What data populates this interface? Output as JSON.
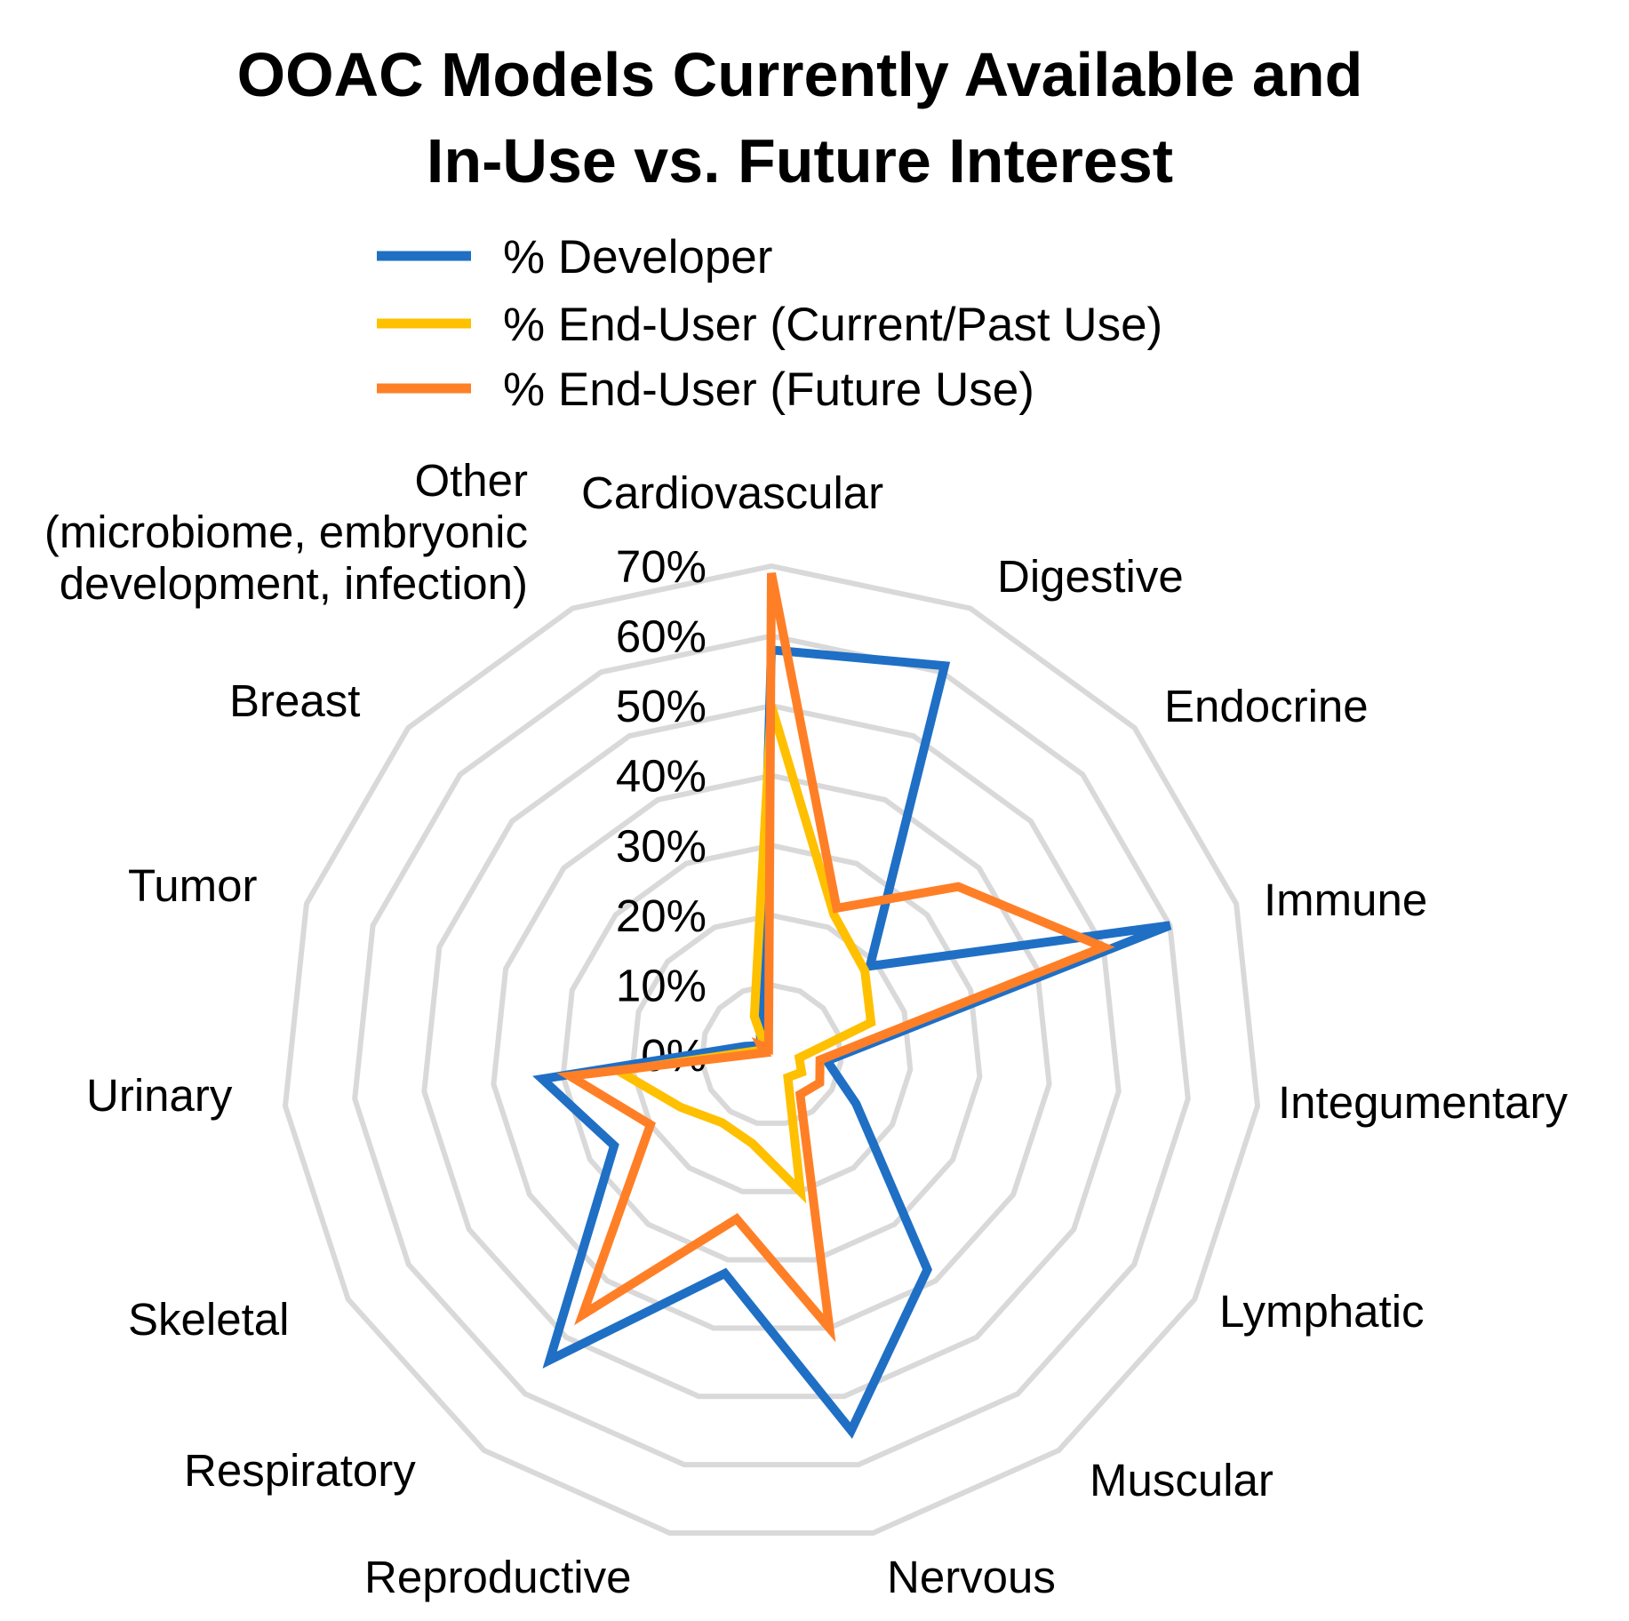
{
  "chart_data": {
    "type": "radar",
    "title_lines": [
      "OOAC Models Currently Available and",
      "In-Use vs. Future Interest"
    ],
    "categories": [
      "Cardiovascular",
      "Digestive",
      "Endocrine",
      "Immune",
      "Integumentary",
      "Lymphatic",
      "Muscular",
      "Nervous",
      "Reproductive",
      "Respiratory",
      "Skeletal",
      "Urinary",
      "Tumor",
      "Breast",
      "Other (microbiome, embryonic development, infection)"
    ],
    "category_label_lines": [
      [
        "Cardiovascular"
      ],
      [
        "Digestive"
      ],
      [
        "Endocrine"
      ],
      [
        "Immune"
      ],
      [
        "Integumentary"
      ],
      [
        "Lymphatic"
      ],
      [
        "Muscular"
      ],
      [
        "Nervous"
      ],
      [
        "Reproductive"
      ],
      [
        "Respiratory"
      ],
      [
        "Skeletal"
      ],
      [
        "Urinary"
      ],
      [
        "Tumor"
      ],
      [
        "Breast"
      ],
      [
        "Other",
        "(microbiome, embryonic",
        "development, infection)"
      ]
    ],
    "series": [
      {
        "name": "% Developer",
        "color": "#1f6fc5",
        "values": [
          58,
          61,
          19,
          60,
          8,
          14,
          38,
          55,
          32,
          54,
          26,
          33,
          4,
          2,
          4
        ]
      },
      {
        "name": "% End-User (Current/Past Use)",
        "color": "#ffc000",
        "values": [
          50,
          22,
          18,
          15,
          4,
          5,
          4,
          20,
          13,
          12,
          15,
          22,
          2,
          1,
          6
        ]
      },
      {
        "name": "% End-User (Future Use)",
        "color": "#ff7f27",
        "values": [
          69,
          23,
          36,
          50,
          7,
          8,
          7,
          40,
          24,
          46,
          20,
          29,
          1,
          2,
          1
        ]
      }
    ],
    "r_ticks": [
      "0%",
      "10%",
      "20%",
      "30%",
      "40%",
      "50%",
      "60%",
      "70%"
    ],
    "r_range": [
      0,
      70
    ],
    "grid_color": "#d9d9d9",
    "legend_position": "top"
  }
}
